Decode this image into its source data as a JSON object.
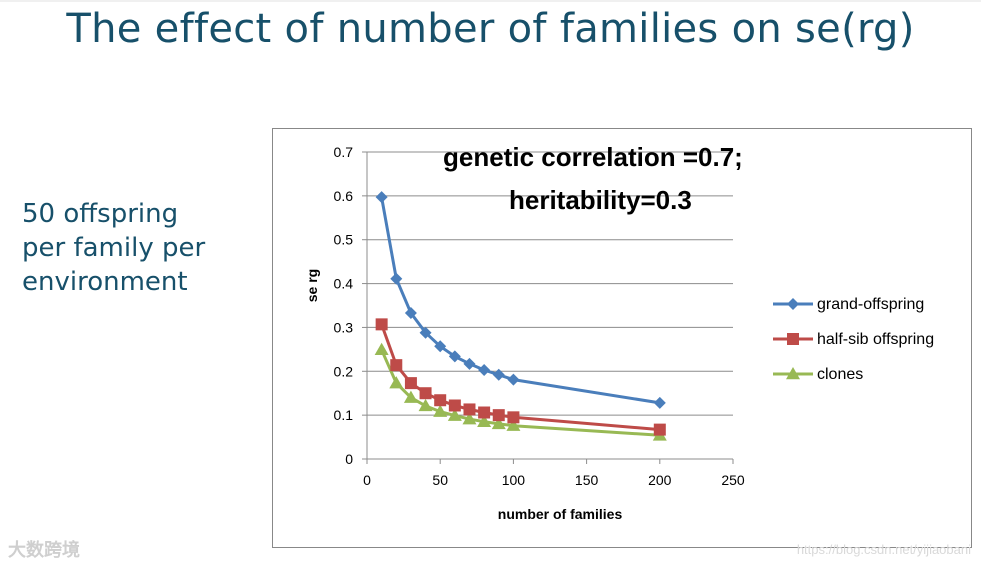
{
  "slide": {
    "title": "The effect of number of families on se(rg)",
    "note_lines": [
      "50 offspring",
      "per family per",
      "environment"
    ],
    "title_color": "#17506a"
  },
  "watermark": {
    "left_text": "大数跨境",
    "right_text": "https://blog.csdn.net/yijiaobani"
  },
  "chart_data": {
    "type": "line",
    "title_lines": [
      "genetic correlation =0.7;",
      "heritability=0.3"
    ],
    "xlabel": "number of families",
    "ylabel": "se rg",
    "xlim": [
      0,
      250
    ],
    "ylim": [
      0,
      0.7
    ],
    "xticks": [
      0,
      50,
      100,
      150,
      200,
      250
    ],
    "yticks": [
      0,
      0.1,
      0.2,
      0.3,
      0.4,
      0.5,
      0.6,
      0.7
    ],
    "grid": true,
    "legend_position": "right",
    "x": [
      10,
      20,
      30,
      40,
      50,
      60,
      70,
      80,
      90,
      100,
      200
    ],
    "series": [
      {
        "name": "grand-offspring",
        "marker": "diamond",
        "color": "#4a7ebb",
        "values": [
          0.597,
          0.411,
          0.333,
          0.288,
          0.257,
          0.234,
          0.217,
          0.203,
          0.192,
          0.181,
          0.128
        ]
      },
      {
        "name": "half-sib offspring",
        "marker": "square",
        "color": "#be4b48",
        "values": [
          0.307,
          0.214,
          0.173,
          0.15,
          0.134,
          0.122,
          0.113,
          0.106,
          0.1,
          0.095,
          0.067
        ]
      },
      {
        "name": "clones",
        "marker": "triangle",
        "color": "#98b954",
        "values": [
          0.249,
          0.173,
          0.14,
          0.121,
          0.108,
          0.099,
          0.091,
          0.085,
          0.08,
          0.076,
          0.054
        ]
      }
    ]
  }
}
